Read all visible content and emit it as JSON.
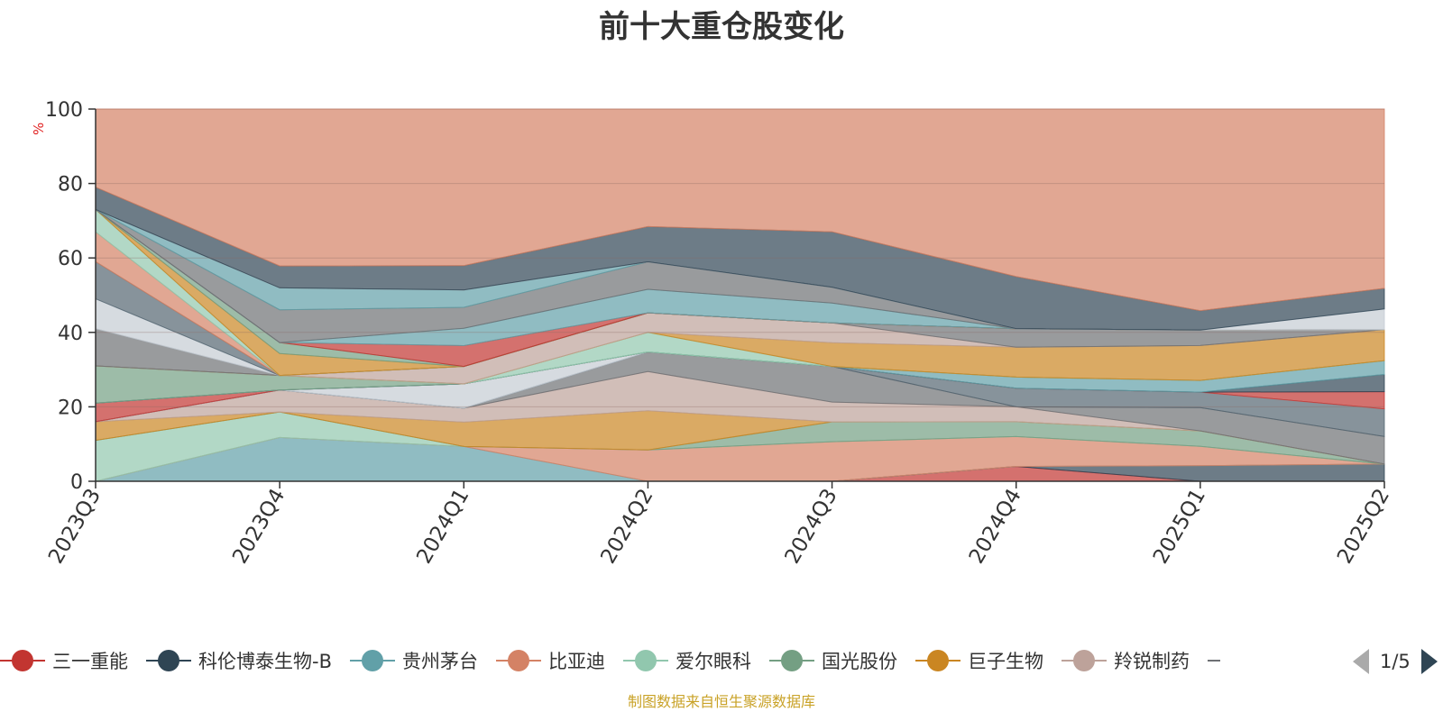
{
  "chart_data": {
    "type": "area",
    "stacked": true,
    "normalized_percent": true,
    "title": "前十大重仓股变化",
    "ylabel": "%",
    "ylim": [
      0,
      100
    ],
    "yticks": [
      0,
      20,
      40,
      60,
      80,
      100
    ],
    "grid": true,
    "legend_placement": "bottom",
    "categories": [
      "2023Q3",
      "2023Q4",
      "2024Q1",
      "2024Q2",
      "2024Q3",
      "2024Q4",
      "2025Q1",
      "2025Q2"
    ],
    "series": [
      {
        "name": "",
        "color": "#c23531",
        "values": [
          0,
          0,
          0,
          0,
          0,
          4,
          0,
          0
        ]
      },
      {
        "name": "",
        "color": "#2f4554",
        "values": [
          0,
          0,
          0,
          0,
          0,
          0,
          4,
          5
        ]
      },
      {
        "name": "",
        "color": "#61a0a8",
        "values": [
          0,
          12,
          10,
          0,
          0,
          0,
          0,
          0
        ]
      },
      {
        "name": "",
        "color": "#d48265",
        "values": [
          0,
          0,
          0,
          8,
          10,
          8,
          5,
          0
        ]
      },
      {
        "name": "",
        "color": "#91c7ae",
        "values": [
          11,
          7,
          0,
          0,
          0,
          0,
          0,
          0
        ]
      },
      {
        "name": "",
        "color": "#749f83",
        "values": [
          0,
          0,
          0,
          0,
          5,
          4,
          4,
          0
        ]
      },
      {
        "name": "",
        "color": "#ca8622",
        "values": [
          5,
          0,
          7,
          10,
          0,
          0,
          0,
          0
        ]
      },
      {
        "name": "",
        "color": "#bda29a",
        "values": [
          0,
          6,
          4,
          10,
          5,
          4,
          0,
          0
        ]
      },
      {
        "name": "",
        "color": "#6e7074",
        "values": [
          0,
          0,
          0,
          5,
          9,
          0,
          6,
          8
        ]
      },
      {
        "name": "",
        "color": "#546570",
        "values": [
          0,
          0,
          0,
          0,
          0,
          5,
          4,
          8
        ]
      },
      {
        "name": "",
        "color": "#c4ccd3",
        "values": [
          0,
          0,
          7,
          0,
          0,
          0,
          0,
          0
        ]
      },
      {
        "name": "",
        "color": "#c23531",
        "values": [
          5,
          0,
          0,
          0,
          0,
          0,
          0,
          5
        ]
      },
      {
        "name": "",
        "color": "#2f4554",
        "values": [
          0,
          0,
          0,
          0,
          0,
          0,
          0,
          5
        ]
      },
      {
        "name": "",
        "color": "#61a0a8",
        "values": [
          0,
          0,
          0,
          0,
          0,
          3,
          3,
          4
        ]
      },
      {
        "name": "",
        "color": "#749f83",
        "values": [
          10,
          4,
          0,
          0,
          0,
          0,
          0,
          0
        ]
      },
      {
        "name": "",
        "color": "#91c7ae",
        "values": [
          0,
          0,
          0,
          5,
          0,
          0,
          0,
          0
        ]
      },
      {
        "name": "",
        "color": "#ca8622",
        "values": [
          0,
          0,
          0,
          0,
          6,
          8,
          9,
          9
        ]
      },
      {
        "name": "",
        "color": "#bda29a",
        "values": [
          0,
          0,
          5,
          5,
          5,
          0,
          0,
          0
        ]
      },
      {
        "name": "",
        "color": "#6e7074",
        "values": [
          10,
          0,
          0,
          0,
          0,
          5,
          4,
          0
        ]
      },
      {
        "name": "",
        "color": "#c4ccd3",
        "values": [
          8,
          0,
          0,
          0,
          0,
          0,
          0,
          0
        ]
      },
      {
        "name": "",
        "color": "#546570",
        "values": [
          10,
          0,
          0,
          0,
          0,
          0,
          0,
          0
        ]
      },
      {
        "name": "",
        "color": "#d48265",
        "values": [
          8,
          0,
          0,
          0,
          0,
          0,
          0,
          0
        ]
      },
      {
        "name": "",
        "color": "#91c7ae",
        "values": [
          6,
          0,
          0,
          0,
          0,
          0,
          0,
          0
        ]
      },
      {
        "name": "",
        "color": "#ca8622",
        "values": [
          0,
          6,
          0,
          0,
          0,
          0,
          0,
          0
        ]
      },
      {
        "name": "",
        "color": "#749f83",
        "values": [
          0,
          3,
          0,
          0,
          0,
          0,
          0,
          0
        ]
      },
      {
        "name": "",
        "color": "#c23531",
        "values": [
          0,
          0,
          6,
          0,
          0,
          0,
          0,
          0
        ]
      },
      {
        "name": "",
        "color": "#61a0a8",
        "values": [
          0,
          0,
          5,
          6,
          5,
          0,
          0,
          0
        ]
      },
      {
        "name": "",
        "color": "#6e7074",
        "values": [
          0,
          9,
          6,
          7,
          4,
          0,
          0,
          0
        ]
      },
      {
        "name": "",
        "color": "#61a0a8",
        "values": [
          0,
          6,
          5,
          0,
          0,
          0,
          0,
          0
        ]
      },
      {
        "name": "",
        "color": "#bda29a",
        "values": [
          0,
          0,
          0,
          0,
          0,
          0,
          0,
          0
        ]
      },
      {
        "name": "",
        "color": "#c4ccd3",
        "values": [
          0,
          0,
          0,
          0,
          0,
          0,
          0,
          6
        ]
      },
      {
        "name": "",
        "color": "#2f4554",
        "values": [
          6,
          6,
          7,
          9,
          14,
          14,
          5,
          6
        ]
      },
      {
        "name": "",
        "color": "#d48265",
        "values": [
          21,
          43,
          45,
          30,
          31,
          45,
          52,
          52
        ]
      }
    ]
  },
  "legend": {
    "items": [
      {
        "name": "三一重能",
        "color": "#c23531"
      },
      {
        "name": "科伦博泰生物-B",
        "color": "#2f4554"
      },
      {
        "name": "贵州茅台",
        "color": "#61a0a8"
      },
      {
        "name": "比亚迪",
        "color": "#d48265"
      },
      {
        "name": "爱尔眼科",
        "color": "#91c7ae"
      },
      {
        "name": "国光股份",
        "color": "#749f83"
      },
      {
        "name": "巨子生物",
        "color": "#ca8622"
      },
      {
        "name": "羚锐制药",
        "color": "#bda29a"
      }
    ],
    "pager": "1/5"
  },
  "source_note": "制图数据来自恒生聚源数据库"
}
